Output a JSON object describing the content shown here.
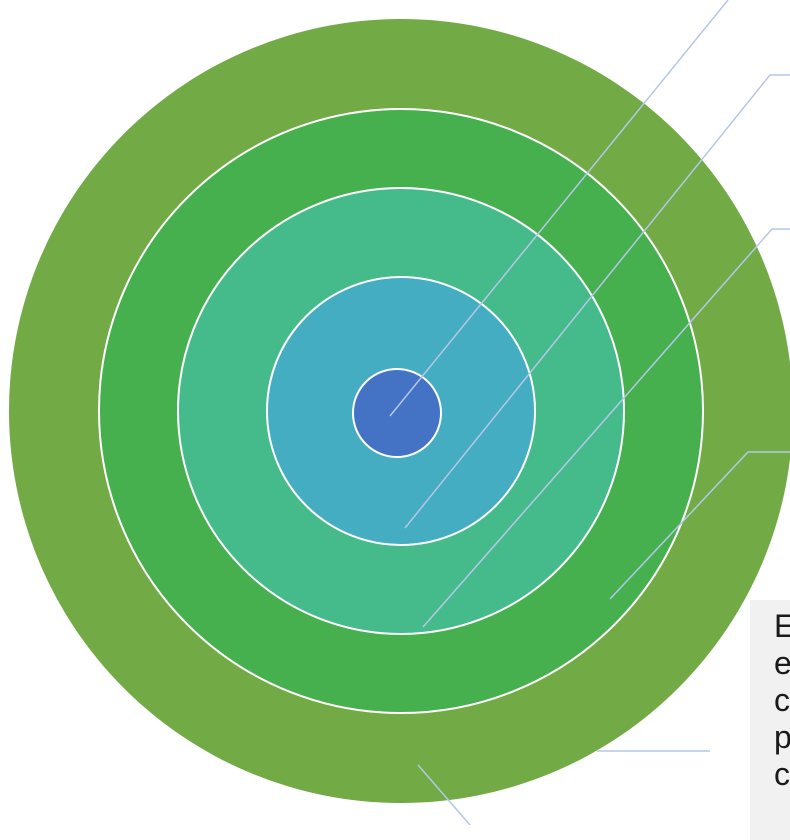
{
  "diagram": {
    "type": "concentric-rings",
    "ring_colors": [
      "#72ab46",
      "#46b04e",
      "#45bb8c",
      "#44adc1",
      "#4472c4"
    ],
    "ring_outline_color": "#ffffff",
    "leader_line_color": "#b4c7e7"
  },
  "callout": {
    "lines": [
      "E",
      "e",
      "c",
      "p",
      "c"
    ]
  }
}
